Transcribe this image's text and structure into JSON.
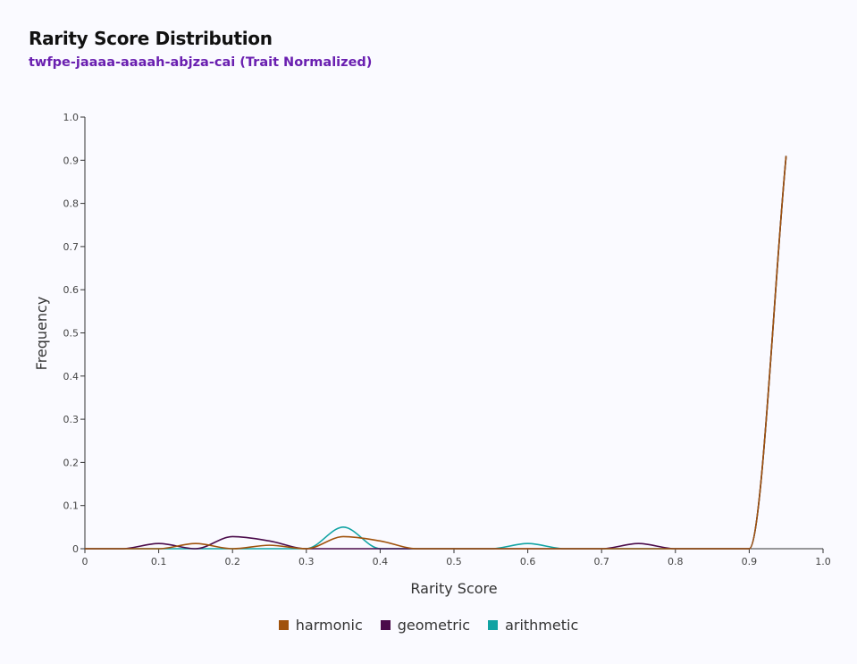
{
  "header": {
    "title": "Rarity Score Distribution",
    "subtitle": "twfpe-jaaaa-aaaah-abjza-cai (Trait Normalized)"
  },
  "chart_data": {
    "type": "line",
    "xlabel": "Rarity Score",
    "ylabel": "Frequency",
    "xlim": [
      0,
      1.0
    ],
    "ylim": [
      0,
      1.0
    ],
    "x_ticks": [
      "0",
      "0.1",
      "0.2",
      "0.3",
      "0.4",
      "0.5",
      "0.6",
      "0.7",
      "0.8",
      "0.9",
      "1.0"
    ],
    "y_ticks": [
      "0",
      "0.1",
      "0.2",
      "0.3",
      "0.4",
      "0.5",
      "0.6",
      "0.7",
      "0.8",
      "0.9",
      "1.0"
    ],
    "grid": false,
    "legend_position": "bottom",
    "series": [
      {
        "name": "harmonic",
        "color": "#a0520c",
        "x": [
          0,
          0.05,
          0.1,
          0.15,
          0.2,
          0.25,
          0.3,
          0.35,
          0.4,
          0.45,
          0.5,
          0.55,
          0.6,
          0.65,
          0.7,
          0.75,
          0.8,
          0.85,
          0.9,
          0.95
        ],
        "y": [
          0,
          0,
          0,
          0.012,
          0,
          0.008,
          0,
          0.028,
          0.018,
          0,
          0,
          0,
          0,
          0,
          0,
          0,
          0,
          0,
          0,
          0.91
        ]
      },
      {
        "name": "geometric",
        "color": "#4a0a4a",
        "x": [
          0,
          0.05,
          0.1,
          0.15,
          0.2,
          0.25,
          0.3,
          0.35,
          0.4,
          0.45,
          0.5,
          0.55,
          0.6,
          0.65,
          0.7,
          0.75,
          0.8,
          0.85,
          0.9,
          0.95
        ],
        "y": [
          0,
          0,
          0.012,
          0,
          0.028,
          0.018,
          0,
          0,
          0,
          0,
          0,
          0,
          0,
          0,
          0,
          0.012,
          0,
          0,
          0,
          0.91
        ]
      },
      {
        "name": "arithmetic",
        "color": "#11a3a3",
        "x": [
          0,
          0.05,
          0.1,
          0.15,
          0.2,
          0.25,
          0.3,
          0.35,
          0.4,
          0.45,
          0.5,
          0.55,
          0.6,
          0.65,
          0.7,
          0.75,
          0.8,
          0.85,
          0.9,
          0.95
        ],
        "y": [
          0,
          0,
          0,
          0,
          0,
          0,
          0,
          0.05,
          0,
          0,
          0,
          0,
          0.012,
          0,
          0,
          0,
          0,
          0,
          0,
          0.91
        ]
      }
    ]
  }
}
